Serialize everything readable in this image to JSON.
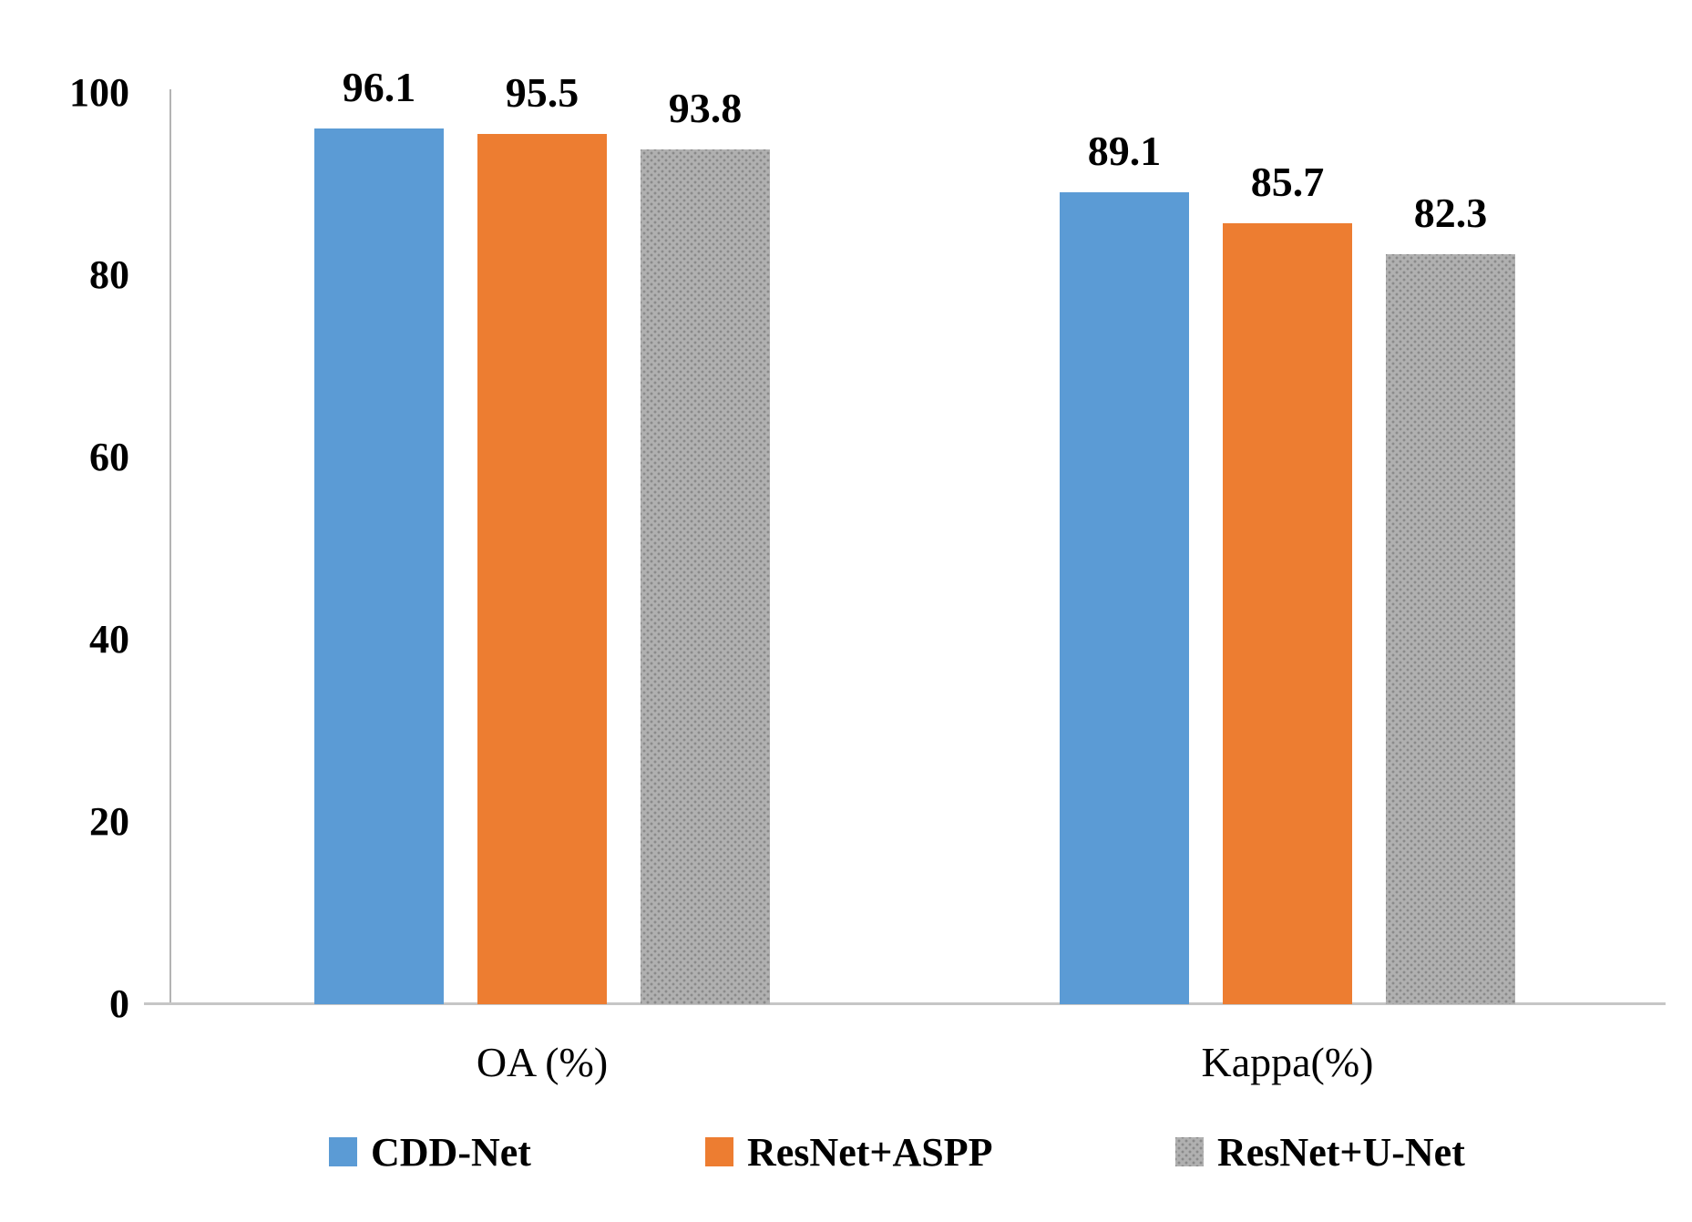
{
  "chart_data": {
    "type": "bar",
    "title": "",
    "categories": [
      "OA (%)",
      "Kappa(%)"
    ],
    "series": [
      {
        "name": "CDD-Net",
        "color": "#5b9bd5",
        "pattern": "solid",
        "values": [
          96.1,
          89.1
        ],
        "labels": [
          "96.1",
          "89.1"
        ]
      },
      {
        "name": "ResNet+ASPP",
        "color": "#ed7d31",
        "pattern": "solid",
        "values": [
          95.5,
          85.7
        ],
        "labels": [
          "95.5",
          "85.7"
        ]
      },
      {
        "name": "ResNet+U-Net",
        "color": "#b0b0b0",
        "pattern": "dotted",
        "values": [
          93.8,
          82.3
        ],
        "labels": [
          "93.8",
          "82.3"
        ]
      }
    ],
    "ylim": [
      0,
      100
    ],
    "yticks": [
      0,
      20,
      40,
      60,
      80,
      100
    ],
    "ytick_labels": [
      "0",
      "20",
      "40",
      "60",
      "80",
      "100"
    ],
    "grid": false,
    "legend_position": "bottom",
    "data_labels": true,
    "axis_color": "#b3b3b3",
    "text_color": "#000000"
  }
}
